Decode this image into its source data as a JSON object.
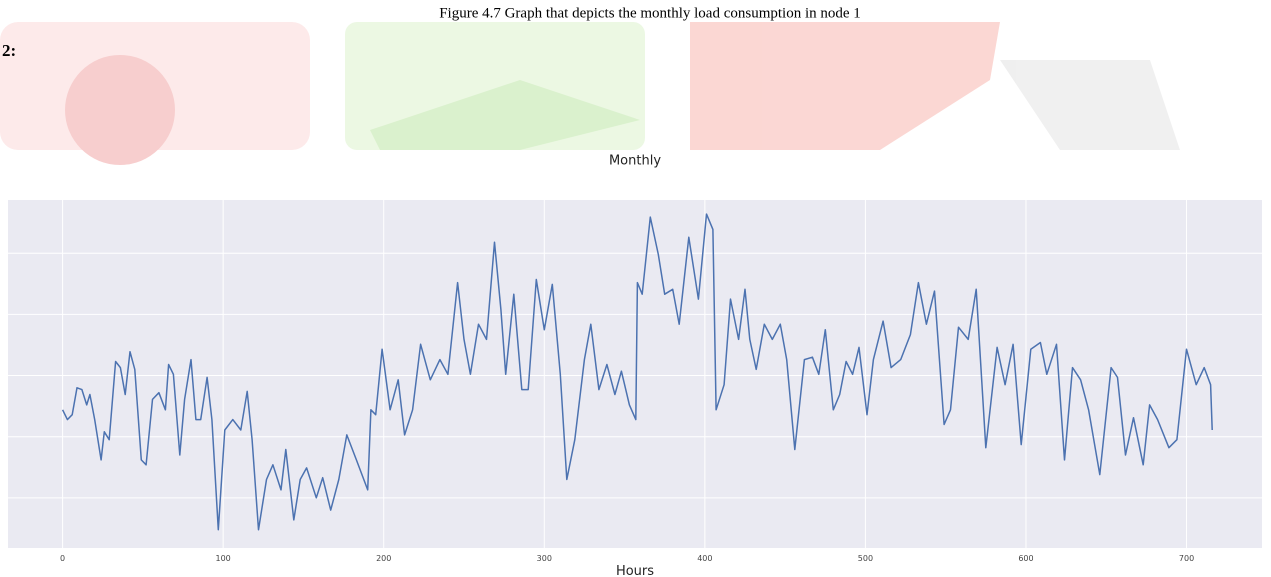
{
  "caption": "Figure 4.7 Graph that depicts the monthly  load consumption in node 1",
  "section_label": "2:",
  "chart_data": {
    "type": "line",
    "title": "Monthly",
    "x_label": "Hours",
    "color": "#4c72b0",
    "grid": true,
    "ytick_labels": false,
    "xlim": [
      -34,
      747
    ],
    "ylim": [
      0.18,
      5.87
    ],
    "xticks": [
      0,
      100,
      200,
      300,
      400,
      500,
      600,
      700
    ],
    "yticks": [
      1,
      2,
      3,
      4,
      5
    ],
    "x": [
      0,
      3,
      6,
      9,
      12,
      15,
      17,
      20,
      24,
      26,
      29,
      33,
      36,
      39,
      42,
      45,
      49,
      52,
      56,
      60,
      64,
      66,
      69,
      73,
      76,
      80,
      83,
      86,
      90,
      93,
      97,
      101,
      106,
      111,
      115,
      118,
      122,
      127,
      131,
      136,
      139,
      144,
      148,
      152,
      158,
      162,
      167,
      172,
      177,
      183,
      190,
      192,
      195,
      199,
      204,
      209,
      213,
      218,
      223,
      229,
      235,
      240,
      246,
      250,
      254,
      259,
      264,
      269,
      273,
      276,
      281,
      286,
      290,
      295,
      300,
      305,
      310,
      314,
      319,
      325,
      329,
      334,
      339,
      344,
      348,
      353,
      357,
      358,
      361,
      366,
      371,
      375,
      380,
      384,
      390,
      396,
      401,
      405,
      407,
      412,
      416,
      421,
      425,
      428,
      432,
      437,
      442,
      447,
      451,
      456,
      462,
      467,
      471,
      475,
      480,
      484,
      488,
      492,
      496,
      501,
      505,
      511,
      516,
      522,
      528,
      533,
      538,
      543,
      549,
      553,
      558,
      564,
      569,
      575,
      582,
      587,
      592,
      597,
      603,
      609,
      613,
      619,
      624,
      629,
      634,
      639,
      646,
      653,
      657,
      662,
      667,
      673,
      677,
      682,
      689,
      694,
      700,
      706,
      711,
      715,
      716
    ],
    "values": [
      2.44,
      2.28,
      2.36,
      2.8,
      2.77,
      2.52,
      2.69,
      2.28,
      1.62,
      2.08,
      1.95,
      3.23,
      3.13,
      2.69,
      3.39,
      3.1,
      1.62,
      1.54,
      2.61,
      2.72,
      2.44,
      3.18,
      3.02,
      1.7,
      2.61,
      3.26,
      2.28,
      2.28,
      2.97,
      2.28,
      0.48,
      2.11,
      2.28,
      2.11,
      2.74,
      1.95,
      0.48,
      1.3,
      1.54,
      1.13,
      1.79,
      0.64,
      1.3,
      1.49,
      1.0,
      1.33,
      0.8,
      1.3,
      2.03,
      1.62,
      1.13,
      2.44,
      2.36,
      3.43,
      2.44,
      2.93,
      2.03,
      2.44,
      3.51,
      2.93,
      3.26,
      3.02,
      4.52,
      3.59,
      3.02,
      3.84,
      3.59,
      5.18,
      4.08,
      3.02,
      4.33,
      2.77,
      2.77,
      4.57,
      3.75,
      4.49,
      3.02,
      1.3,
      1.95,
      3.26,
      3.84,
      2.77,
      3.18,
      2.69,
      3.07,
      2.52,
      2.28,
      4.52,
      4.33,
      5.59,
      4.98,
      4.33,
      4.41,
      3.84,
      5.26,
      4.25,
      5.64,
      5.39,
      2.44,
      2.85,
      4.25,
      3.59,
      4.41,
      3.59,
      3.1,
      3.84,
      3.59,
      3.84,
      3.26,
      1.79,
      3.26,
      3.3,
      3.02,
      3.75,
      2.44,
      2.69,
      3.23,
      3.02,
      3.46,
      2.36,
      3.26,
      3.89,
      3.13,
      3.26,
      3.67,
      4.52,
      3.84,
      4.38,
      2.2,
      2.44,
      3.79,
      3.59,
      4.41,
      1.82,
      3.46,
      2.85,
      3.51,
      1.87,
      3.43,
      3.54,
      3.02,
      3.51,
      1.62,
      3.13,
      2.93,
      2.44,
      1.38,
      3.13,
      2.97,
      1.7,
      2.31,
      1.54,
      2.52,
      2.28,
      1.82,
      1.95,
      3.43,
      2.85,
      3.13,
      2.85,
      2.11
    ]
  }
}
